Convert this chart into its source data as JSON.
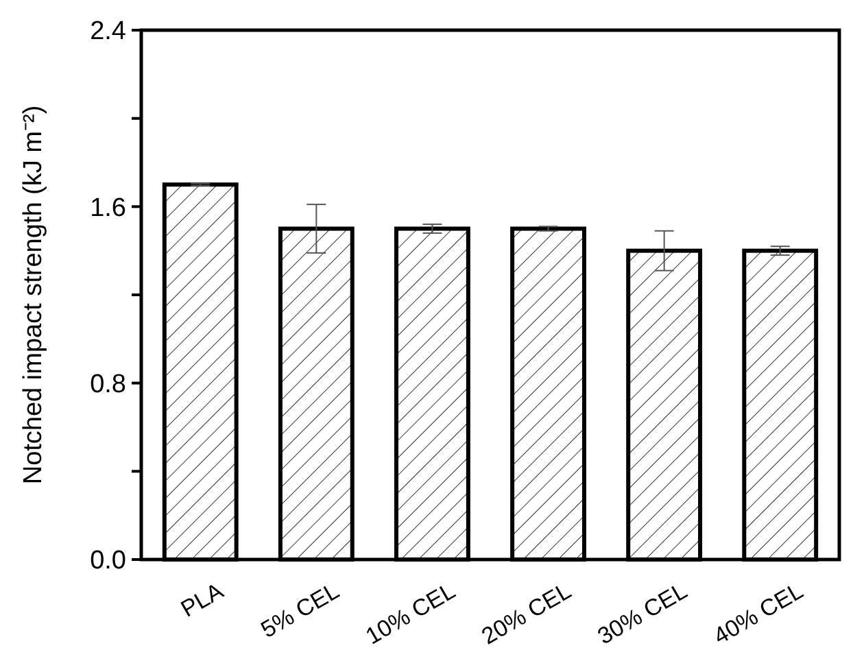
{
  "chart_data": {
    "type": "bar",
    "ylabel": "Notched impact strength (kJ m⁻²)",
    "categories": [
      "PLA",
      "5% CEL",
      "10% CEL",
      "20% CEL",
      "30% CEL",
      "40% CEL"
    ],
    "series": [
      {
        "color": "#ffffff",
        "values": [
          1.7,
          1.5,
          1.5,
          1.5,
          1.4,
          1.4
        ],
        "errors": [
          0.005,
          0.11,
          0.02,
          0.01,
          0.09,
          0.02
        ]
      }
    ],
    "ylim": [
      0,
      2.4
    ],
    "yticks": [
      {
        "value": 0,
        "label": "0.0"
      },
      {
        "value": 0.4,
        "label": null
      },
      0.8,
      {
        "value": 1.2,
        "label": null
      },
      1.6,
      {
        "value": 2.0,
        "label": null
      },
      2.4
    ],
    "grid": false
  }
}
